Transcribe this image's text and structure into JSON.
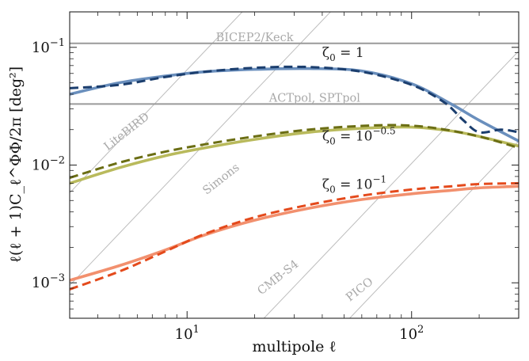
{
  "chart_data": {
    "type": "line",
    "xscale": "log",
    "yscale": "log",
    "xlim": [
      3,
      300
    ],
    "ylim": [
      0.0005,
      0.2
    ],
    "xlabel": "multipole ℓ",
    "ylabel": "ℓ(ℓ + 1)C_ℓ^ΦΦ/2π  [deg²]",
    "x_ticks": [
      {
        "value": 10,
        "base": "10",
        "exp": "1"
      },
      {
        "value": 100,
        "base": "10",
        "exp": "2"
      }
    ],
    "y_ticks": [
      {
        "value": 0.001,
        "base": "10",
        "exp": "−3"
      },
      {
        "value": 0.01,
        "base": "10",
        "exp": "−2"
      },
      {
        "value": 0.1,
        "base": "10",
        "exp": "−1"
      }
    ],
    "horizontal_lines": [
      {
        "name": "BICEP2/Keck",
        "y": 0.108
      },
      {
        "name": "ACTpol, SPTpol",
        "y": 0.033
      }
    ],
    "diagonal_lines": [
      {
        "name": "LiteBIRD",
        "x0": 3,
        "y0": 0.0058,
        "slope": 2
      },
      {
        "name": "Simons",
        "x0": 3,
        "y0": 0.00095,
        "slope": 2
      },
      {
        "name": "CMB-S4",
        "x0": 22,
        "y0": 0.0005,
        "slope": 2
      },
      {
        "name": "PICO",
        "x0": 53,
        "y0": 0.0005,
        "slope": 2
      }
    ],
    "series": [
      {
        "name": "ζ0 = 1 (solid)",
        "color": "#6a8fbd",
        "dash": false,
        "x": [
          3,
          5,
          8,
          12,
          20,
          35,
          60,
          100,
          150,
          200,
          300
        ],
        "y": [
          0.04,
          0.05,
          0.057,
          0.062,
          0.065,
          0.066,
          0.063,
          0.049,
          0.033,
          0.024,
          0.016
        ]
      },
      {
        "name": "ζ0 = 1 (dashed)",
        "color": "#1b3e6e",
        "dash": true,
        "x": [
          3,
          5,
          8,
          12,
          20,
          35,
          60,
          100,
          140,
          170,
          200,
          250,
          300
        ],
        "y": [
          0.045,
          0.048,
          0.056,
          0.062,
          0.067,
          0.068,
          0.062,
          0.048,
          0.034,
          0.024,
          0.019,
          0.02,
          0.019
        ]
      },
      {
        "name": "ζ0 = 10^−0.5 (solid)",
        "color": "#b9ba5c",
        "dash": false,
        "x": [
          3,
          5,
          8,
          12,
          20,
          35,
          60,
          100,
          150,
          200,
          300
        ],
        "y": [
          0.007,
          0.0095,
          0.012,
          0.014,
          0.0165,
          0.019,
          0.0205,
          0.021,
          0.0195,
          0.0175,
          0.0145
        ]
      },
      {
        "name": "ζ0 = 10^−0.5 (dashed)",
        "color": "#6b6e14",
        "dash": true,
        "x": [
          3,
          5,
          8,
          12,
          20,
          35,
          60,
          90,
          130,
          200,
          300
        ],
        "y": [
          0.0078,
          0.0105,
          0.013,
          0.015,
          0.0175,
          0.02,
          0.0215,
          0.0218,
          0.0205,
          0.0175,
          0.014
        ]
      },
      {
        "name": "ζ0 = 10^−1 (solid)",
        "color": "#f2906e",
        "dash": false,
        "x": [
          3,
          5,
          8,
          12,
          20,
          35,
          60,
          100,
          150,
          200,
          300
        ],
        "y": [
          0.00105,
          0.0014,
          0.0019,
          0.00255,
          0.0034,
          0.0043,
          0.0051,
          0.0057,
          0.0061,
          0.0064,
          0.0066
        ]
      },
      {
        "name": "ζ0 = 10^−1 (dashed)",
        "color": "#e44a1c",
        "dash": true,
        "x": [
          3,
          5,
          8,
          12,
          20,
          35,
          60,
          100,
          150,
          200,
          300
        ],
        "y": [
          0.00088,
          0.00125,
          0.00185,
          0.0026,
          0.0036,
          0.0046,
          0.0055,
          0.0062,
          0.0066,
          0.0069,
          0.007
        ]
      }
    ],
    "curve_labels": [
      {
        "text": "ζ0 = 1",
        "base": "ζ",
        "sub": "0",
        "rest": " = 1",
        "sup": "",
        "x": 40,
        "y": 0.083
      },
      {
        "text": "ζ0 = 10^−0.5",
        "base": "ζ",
        "sub": "0",
        "rest": " = 10",
        "sup": "−0.5",
        "x": 40,
        "y": 0.0162
      },
      {
        "text": "ζ0 = 10^−1",
        "base": "ζ",
        "sub": "0",
        "rest": " = 10",
        "sup": "−1",
        "x": 40,
        "y": 0.0063
      }
    ],
    "experiment_labels": [
      {
        "text": "BICEP2/Keck",
        "x": 20,
        "y": 0.113,
        "angle": 0
      },
      {
        "text": "ACTpol, SPTpol",
        "x": 37,
        "y": 0.0345,
        "angle": 0
      },
      {
        "text": "LiteBIRD",
        "x": 5.5,
        "y": 0.0182,
        "angle": -38
      },
      {
        "text": "Simons",
        "x": 14.5,
        "y": 0.0072,
        "angle": -38
      },
      {
        "text": "CMB-S4",
        "x": 26,
        "y": 0.00105,
        "angle": -38
      },
      {
        "text": "PICO",
        "x": 60,
        "y": 0.00083,
        "angle": -38
      }
    ],
    "colors": {
      "frame": "#222222",
      "reference_line": "#9a9a9a",
      "experiment_line": "#bdbdbd",
      "experiment_text": "#a9a9a9"
    }
  }
}
